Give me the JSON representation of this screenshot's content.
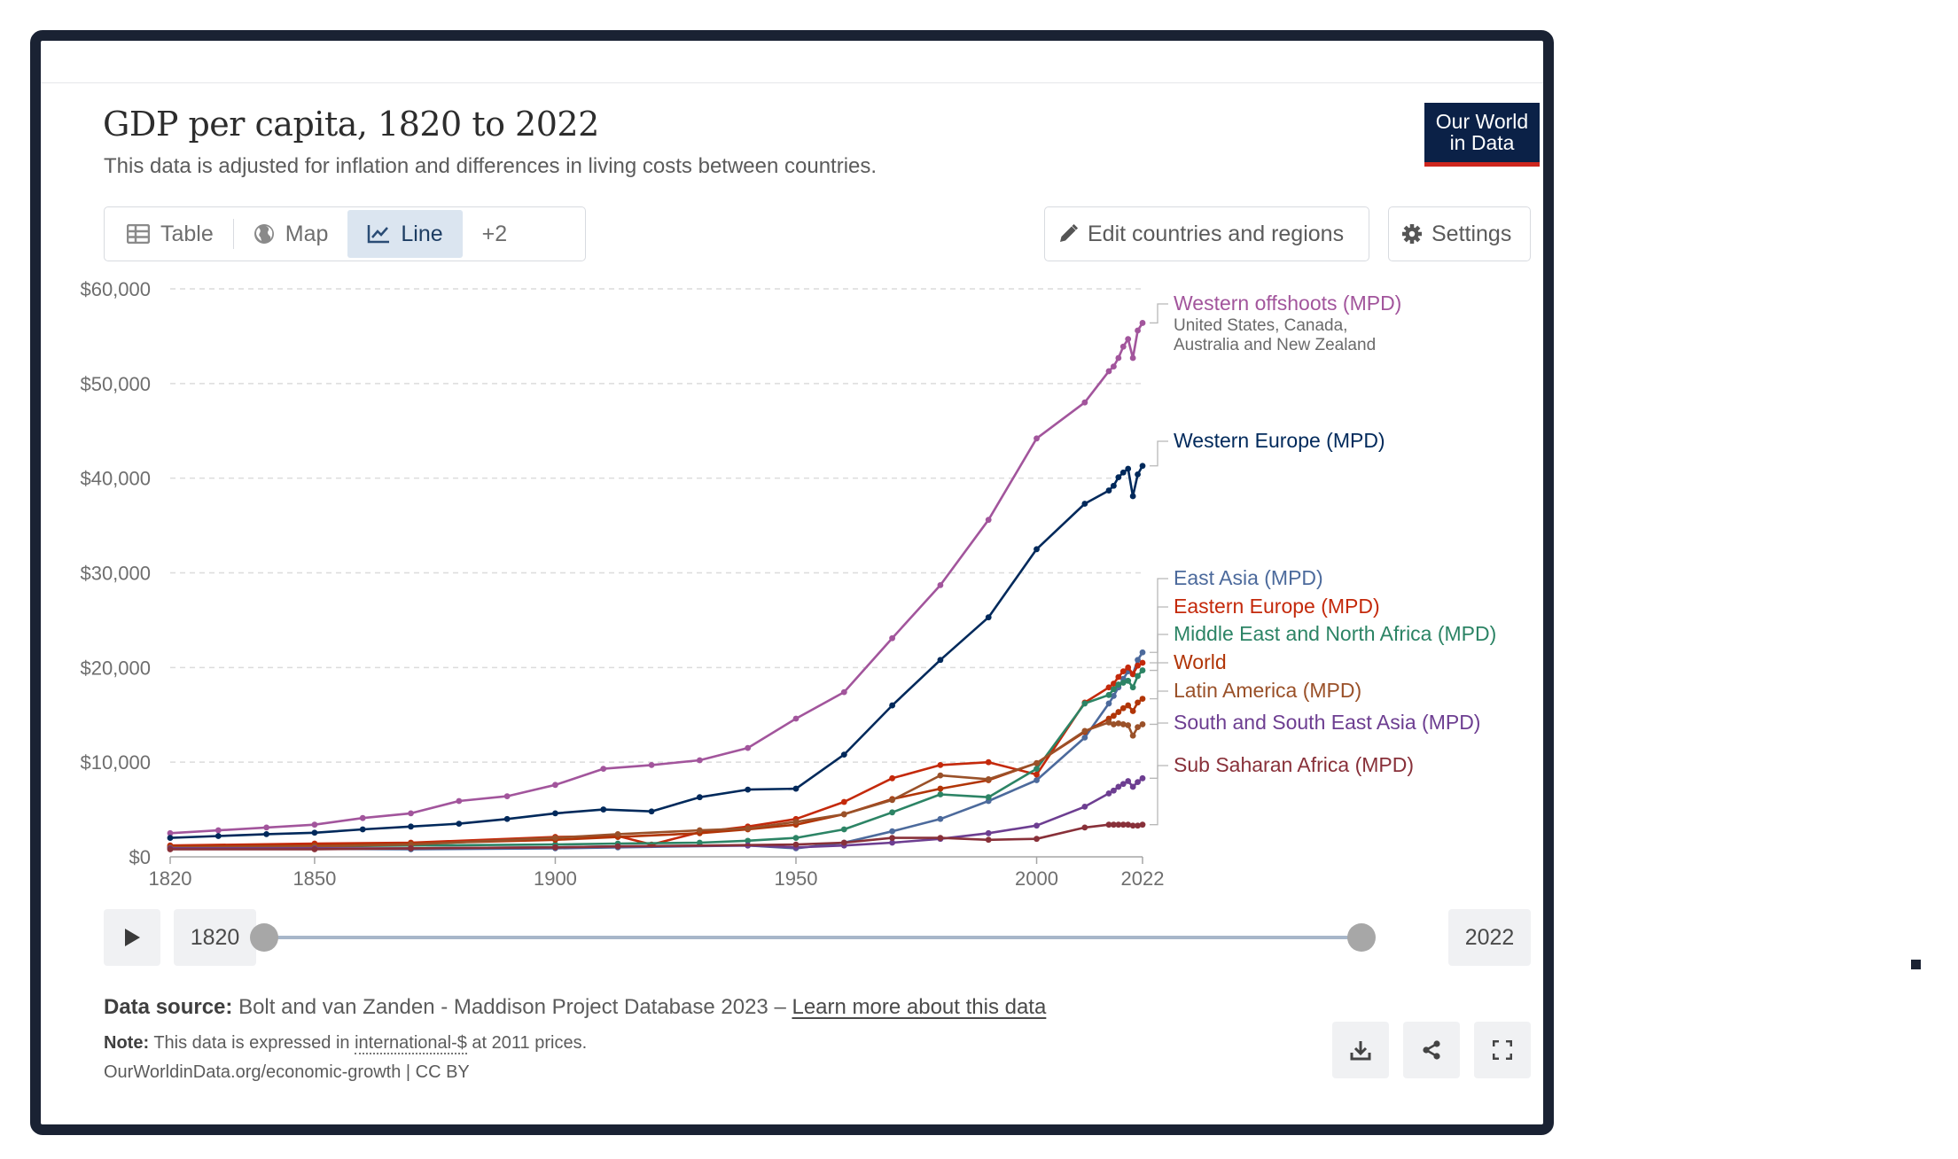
{
  "header": {
    "title": "GDP per capita, 1820 to 2022",
    "subtitle": "This data is adjusted for inflation and differences in living costs between countries.",
    "logo_line1": "Our World",
    "logo_line2": "in Data"
  },
  "tabs": [
    {
      "label": "Table",
      "icon": "table-icon"
    },
    {
      "label": "Map",
      "icon": "globe-icon"
    },
    {
      "label": "Line",
      "icon": "line-chart-icon",
      "active": true
    },
    {
      "label": "+2"
    }
  ],
  "toolbar": {
    "edit_label": "Edit countries and regions",
    "settings_label": "Settings"
  },
  "timeline": {
    "start_year": "1820",
    "end_year": "2022"
  },
  "footer": {
    "source_label": "Data source:",
    "source_text": "Bolt and van Zanden - Maddison Project Database 2023 –",
    "source_link": "Learn more about this data",
    "note_label": "Note:",
    "note_pre": "This data is expressed in",
    "note_term": "international-$",
    "note_post": "at 2011 prices.",
    "url": "OurWorldinData.org/economic-growth | CC BY"
  },
  "colors": {
    "frame": "#1a2233",
    "logo_bg": "#0b2147",
    "logo_accent": "#ce261e",
    "tab_active_bg": "#dbe5f0"
  },
  "chart_data": {
    "type": "line",
    "title": "GDP per capita, 1820 to 2022",
    "xlabel": "",
    "ylabel": "",
    "xlim": [
      1820,
      2022
    ],
    "ylim": [
      0,
      60000
    ],
    "x_ticks": [
      1820,
      1850,
      1900,
      1950,
      2000,
      2022
    ],
    "y_ticks": [
      {
        "value": 0,
        "label": "$0"
      },
      {
        "value": 10000,
        "label": "$10,000"
      },
      {
        "value": 20000,
        "label": "$20,000"
      },
      {
        "value": 30000,
        "label": "$30,000"
      },
      {
        "value": 40000,
        "label": "$40,000"
      },
      {
        "value": 50000,
        "label": "$50,000"
      },
      {
        "value": 60000,
        "label": "$60,000"
      }
    ],
    "grid": true,
    "legend": "right, inline end labels",
    "series": [
      {
        "name": "Western offshoots (MPD)",
        "sublabel1": "United States, Canada,",
        "sublabel2": "Australia and New Zealand",
        "color": "#a2559c",
        "points": [
          [
            1820,
            2500
          ],
          [
            1830,
            2800
          ],
          [
            1840,
            3100
          ],
          [
            1850,
            3400
          ],
          [
            1860,
            4100
          ],
          [
            1870,
            4600
          ],
          [
            1880,
            5900
          ],
          [
            1890,
            6400
          ],
          [
            1900,
            7600
          ],
          [
            1910,
            9300
          ],
          [
            1920,
            9700
          ],
          [
            1930,
            10200
          ],
          [
            1940,
            11500
          ],
          [
            1950,
            14600
          ],
          [
            1960,
            17400
          ],
          [
            1970,
            23100
          ],
          [
            1980,
            28700
          ],
          [
            1990,
            35600
          ],
          [
            2000,
            44200
          ],
          [
            2010,
            48000
          ],
          [
            2015,
            51300
          ],
          [
            2016,
            51800
          ],
          [
            2017,
            52700
          ],
          [
            2018,
            53900
          ],
          [
            2019,
            54700
          ],
          [
            2020,
            52700
          ],
          [
            2021,
            55600
          ],
          [
            2022,
            56400
          ]
        ]
      },
      {
        "name": "Western Europe (MPD)",
        "color": "#00295b",
        "points": [
          [
            1820,
            2000
          ],
          [
            1830,
            2200
          ],
          [
            1840,
            2400
          ],
          [
            1850,
            2550
          ],
          [
            1860,
            2900
          ],
          [
            1870,
            3200
          ],
          [
            1880,
            3500
          ],
          [
            1890,
            4000
          ],
          [
            1900,
            4600
          ],
          [
            1910,
            5000
          ],
          [
            1920,
            4800
          ],
          [
            1930,
            6300
          ],
          [
            1940,
            7100
          ],
          [
            1950,
            7200
          ],
          [
            1960,
            10800
          ],
          [
            1970,
            16000
          ],
          [
            1980,
            20800
          ],
          [
            1990,
            25300
          ],
          [
            2000,
            32500
          ],
          [
            2010,
            37300
          ],
          [
            2015,
            38700
          ],
          [
            2016,
            39200
          ],
          [
            2017,
            40100
          ],
          [
            2018,
            40600
          ],
          [
            2019,
            41000
          ],
          [
            2020,
            38100
          ],
          [
            2021,
            40400
          ],
          [
            2022,
            41300
          ]
        ]
      },
      {
        "name": "East Asia (MPD)",
        "color": "#4c6a9c",
        "points": [
          [
            1820,
            900
          ],
          [
            1850,
            850
          ],
          [
            1870,
            800
          ],
          [
            1900,
            900
          ],
          [
            1913,
            1000
          ],
          [
            1940,
            1200
          ],
          [
            1950,
            900
          ],
          [
            1960,
            1500
          ],
          [
            1970,
            2700
          ],
          [
            1980,
            4000
          ],
          [
            1990,
            5900
          ],
          [
            2000,
            8100
          ],
          [
            2010,
            12600
          ],
          [
            2015,
            16200
          ],
          [
            2016,
            17000
          ],
          [
            2017,
            17900
          ],
          [
            2018,
            18800
          ],
          [
            2019,
            19600
          ],
          [
            2020,
            19300
          ],
          [
            2021,
            20800
          ],
          [
            2022,
            21600
          ]
        ]
      },
      {
        "name": "Eastern Europe (MPD)",
        "color": "#c4290b",
        "points": [
          [
            1820,
            1200
          ],
          [
            1850,
            1400
          ],
          [
            1870,
            1500
          ],
          [
            1900,
            2100
          ],
          [
            1913,
            2200
          ],
          [
            1920,
            1300
          ],
          [
            1930,
            2600
          ],
          [
            1940,
            3200
          ],
          [
            1950,
            4000
          ],
          [
            1960,
            5800
          ],
          [
            1970,
            8300
          ],
          [
            1980,
            9700
          ],
          [
            1990,
            10000
          ],
          [
            2000,
            8700
          ],
          [
            2010,
            16300
          ],
          [
            2015,
            17900
          ],
          [
            2016,
            18300
          ],
          [
            2017,
            19000
          ],
          [
            2018,
            19600
          ],
          [
            2019,
            20000
          ],
          [
            2020,
            19300
          ],
          [
            2021,
            20200
          ],
          [
            2022,
            20500
          ]
        ]
      },
      {
        "name": "Middle East and North Africa (MPD)",
        "color": "#2c8465",
        "points": [
          [
            1820,
            1000
          ],
          [
            1850,
            1100
          ],
          [
            1870,
            1200
          ],
          [
            1900,
            1300
          ],
          [
            1913,
            1400
          ],
          [
            1930,
            1500
          ],
          [
            1940,
            1700
          ],
          [
            1950,
            2000
          ],
          [
            1960,
            2900
          ],
          [
            1970,
            4700
          ],
          [
            1980,
            6600
          ],
          [
            1990,
            6300
          ],
          [
            2000,
            9300
          ],
          [
            2010,
            16200
          ],
          [
            2015,
            17100
          ],
          [
            2016,
            17700
          ],
          [
            2017,
            18200
          ],
          [
            2018,
            18400
          ],
          [
            2019,
            18600
          ],
          [
            2020,
            17900
          ],
          [
            2021,
            19100
          ],
          [
            2022,
            19700
          ]
        ]
      },
      {
        "name": "World",
        "color": "#b13507",
        "points": [
          [
            1820,
            1100
          ],
          [
            1850,
            1200
          ],
          [
            1870,
            1400
          ],
          [
            1900,
            1800
          ],
          [
            1913,
            2100
          ],
          [
            1930,
            2500
          ],
          [
            1940,
            2900
          ],
          [
            1950,
            3400
          ],
          [
            1960,
            4500
          ],
          [
            1970,
            6100
          ],
          [
            1980,
            7200
          ],
          [
            1990,
            8100
          ],
          [
            2000,
            9900
          ],
          [
            2010,
            13200
          ],
          [
            2015,
            14600
          ],
          [
            2016,
            14900
          ],
          [
            2017,
            15300
          ],
          [
            2018,
            15700
          ],
          [
            2019,
            16000
          ],
          [
            2020,
            15400
          ],
          [
            2021,
            16300
          ],
          [
            2022,
            16700
          ]
        ]
      },
      {
        "name": "Latin America (MPD)",
        "color": "#9a5129",
        "points": [
          [
            1820,
            1000
          ],
          [
            1850,
            1100
          ],
          [
            1870,
            1300
          ],
          [
            1900,
            2000
          ],
          [
            1913,
            2400
          ],
          [
            1930,
            2800
          ],
          [
            1940,
            3000
          ],
          [
            1950,
            3700
          ],
          [
            1960,
            4500
          ],
          [
            1970,
            6000
          ],
          [
            1980,
            8600
          ],
          [
            1990,
            8200
          ],
          [
            2000,
            9900
          ],
          [
            2010,
            13300
          ],
          [
            2015,
            14200
          ],
          [
            2016,
            14000
          ],
          [
            2017,
            14100
          ],
          [
            2018,
            14000
          ],
          [
            2019,
            13900
          ],
          [
            2020,
            12800
          ],
          [
            2021,
            13700
          ],
          [
            2022,
            14000
          ]
        ]
      },
      {
        "name": "South and South East Asia (MPD)",
        "color": "#6d3e91",
        "points": [
          [
            1820,
            900
          ],
          [
            1850,
            900
          ],
          [
            1870,
            900
          ],
          [
            1900,
            1000
          ],
          [
            1913,
            1100
          ],
          [
            1940,
            1200
          ],
          [
            1950,
            1000
          ],
          [
            1960,
            1200
          ],
          [
            1970,
            1500
          ],
          [
            1980,
            1900
          ],
          [
            1990,
            2500
          ],
          [
            2000,
            3300
          ],
          [
            2010,
            5300
          ],
          [
            2015,
            6700
          ],
          [
            2016,
            7000
          ],
          [
            2017,
            7400
          ],
          [
            2018,
            7700
          ],
          [
            2019,
            8000
          ],
          [
            2020,
            7400
          ],
          [
            2021,
            7900
          ],
          [
            2022,
            8300
          ]
        ]
      },
      {
        "name": "Sub Saharan Africa (MPD)",
        "color": "#883039",
        "points": [
          [
            1820,
            800
          ],
          [
            1850,
            800
          ],
          [
            1870,
            900
          ],
          [
            1900,
            1000
          ],
          [
            1913,
            1100
          ],
          [
            1950,
            1300
          ],
          [
            1960,
            1500
          ],
          [
            1970,
            2000
          ],
          [
            1980,
            2000
          ],
          [
            1990,
            1800
          ],
          [
            2000,
            1900
          ],
          [
            2010,
            3100
          ],
          [
            2015,
            3400
          ],
          [
            2016,
            3400
          ],
          [
            2017,
            3400
          ],
          [
            2018,
            3400
          ],
          [
            2019,
            3400
          ],
          [
            2020,
            3300
          ],
          [
            2021,
            3300
          ],
          [
            2022,
            3400
          ]
        ]
      }
    ]
  }
}
